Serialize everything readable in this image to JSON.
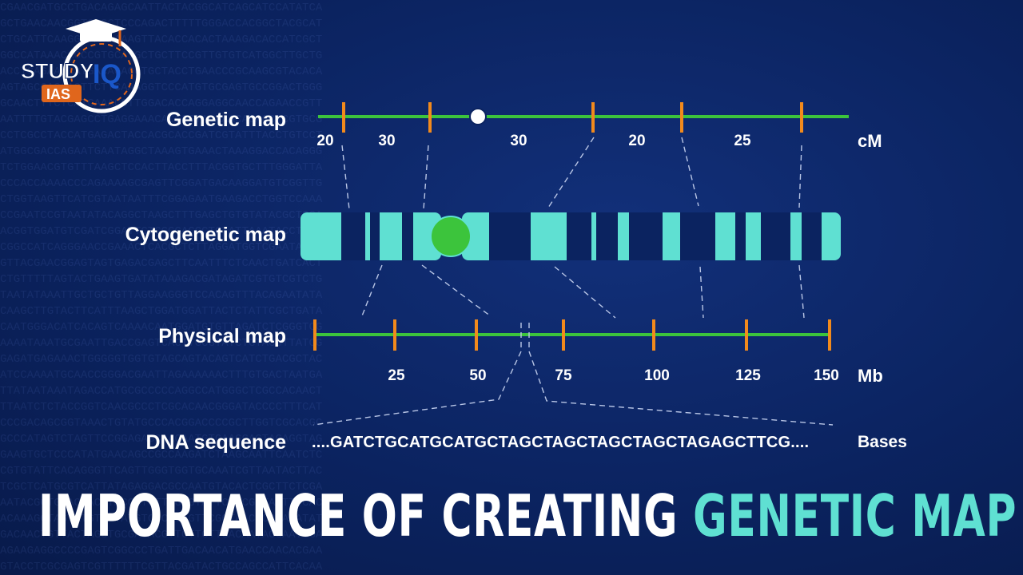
{
  "logo": {
    "study": "STUDY",
    "iq": "IQ",
    "ias": "IAS",
    "colors": {
      "study": "#ffffff",
      "iq": "#1a57c9",
      "ias_badge": "#e0661c",
      "ring": "#ffffff"
    }
  },
  "rows": {
    "genetic": {
      "label": "Genetic map",
      "unit": "cM",
      "interval_labels": [
        "20",
        "30",
        "30",
        "20",
        "25"
      ]
    },
    "cytogenetic": {
      "label": "Cytogenetic map"
    },
    "physical": {
      "label": "Physical map",
      "unit": "Mb",
      "tick_labels": [
        "25",
        "50",
        "75",
        "100",
        "125",
        "150"
      ]
    },
    "dna": {
      "label": "DNA sequence",
      "sequence": "....GATCTGCATGCATGCTAGCTAGCTAGCTAGCTAGAGCTTCG....",
      "unit": "Bases"
    }
  },
  "headline": {
    "white_part": "IMPORTANCE OF CREATING",
    "accent_part": "GENETIC MAP"
  },
  "colors": {
    "background": "#0b2360",
    "line_green": "#3cc43c",
    "tick_orange": "#f28a1c",
    "chromosome": "#5fe0d2",
    "band_dark": "#0b2360",
    "centromere": "#3cc43c",
    "accent": "#5fe0d2"
  }
}
